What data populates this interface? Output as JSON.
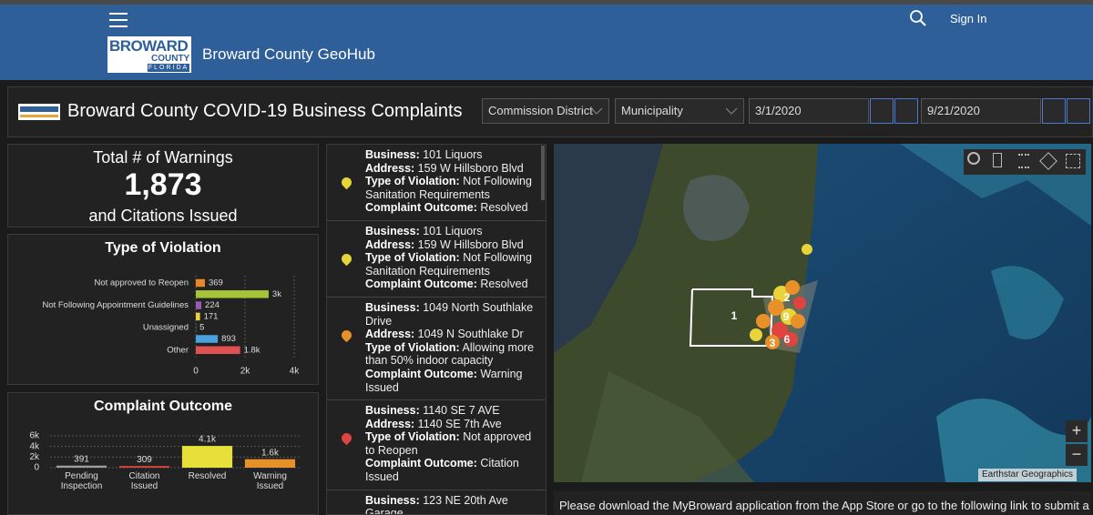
{
  "header": {
    "logo": {
      "name": "BROWARD",
      "county": "COUNTY",
      "state": "FLORIDA"
    },
    "site_title": "Broward County GeoHub",
    "sign_in": "Sign In"
  },
  "dashboard": {
    "title": "Broward County COVID-19 Business Complaints",
    "filters": [
      "Commission District",
      "Municipality"
    ],
    "start_date": "3/1/2020",
    "end_date": "9/21/2020"
  },
  "summary": {
    "top": "Total # of Warnings",
    "value": "1,873",
    "bottom": "and Citations Issued"
  },
  "chart_data": [
    {
      "type": "bar",
      "orientation": "horizontal",
      "title": "Type of Violation",
      "categories": [
        "Not approved to Reopen",
        null,
        "Not Following Appointment Guidelines",
        null,
        "Unassigned",
        null,
        "Other"
      ],
      "values": [
        369,
        2960,
        224,
        171,
        5,
        893,
        1800
      ],
      "value_labels": [
        "369",
        "3k",
        "224",
        "171",
        "5",
        "893",
        "1.8k"
      ],
      "colors": [
        "#e8862a",
        "#a6c43a",
        "#9b59b6",
        "#e8d33a",
        "#d0d0d0",
        "#4aa3df",
        "#e05252"
      ],
      "xlim": [
        0,
        4000
      ],
      "xticks": [
        0,
        {
          "value": 2000,
          "label": "2k"
        },
        {
          "value": 4000,
          "label": "4k"
        }
      ],
      "grid": true
    },
    {
      "type": "bar",
      "orientation": "vertical",
      "title": "Complaint Outcome",
      "categories": [
        "Pending Inspection",
        "Citation Issued",
        "Resolved",
        "Warning Issued"
      ],
      "values": [
        391,
        309,
        4100,
        1600
      ],
      "value_labels": [
        "391",
        "309",
        "4.1k",
        "1.6k"
      ],
      "colors": [
        "#9e9e9e",
        "#e0443e",
        "#e8e03a",
        "#e8902a"
      ],
      "ylim": [
        0,
        6000
      ],
      "yticks": [
        0,
        {
          "value": 2000,
          "label": "2k"
        },
        {
          "value": 4000,
          "label": "4k"
        },
        {
          "value": 6000,
          "label": "6k"
        }
      ],
      "grid": true
    }
  ],
  "complaints": {
    "labels": {
      "business": "Business:",
      "address": "Address:",
      "violation": "Type of Violation:",
      "outcome": "Complaint Outcome:"
    },
    "items": [
      {
        "business": "101 Liquors",
        "address": "159 W Hillsboro Blvd",
        "violation": "Not Following Sanitation Requirements",
        "outcome": "Resolved",
        "pin_color": "#e8d33a"
      },
      {
        "business": "101 Liquors",
        "address": "159 W Hillsboro Blvd",
        "violation": "Not Following Sanitation Requirements",
        "outcome": "Resolved",
        "pin_color": "#e8d33a"
      },
      {
        "business": "1049 North Southlake Drive",
        "address": "1049 N Southlake Dr",
        "violation": "Allowing more than 50% indoor capacity",
        "outcome": "Warning Issued",
        "pin_color": "#e8902a"
      },
      {
        "business": "1140 SE 7 AVE",
        "address": "1140 SE 7th Ave",
        "violation": "Not approved to Reopen",
        "outcome": "Citation Issued",
        "pin_color": "#e0443e"
      },
      {
        "business": "123 NE 20th Ave Garage"
      }
    ]
  },
  "map": {
    "cluster_labels": [
      "1",
      "2",
      "9",
      "3",
      "6"
    ],
    "attribution": "Earthstar Geographics"
  },
  "footer_note": "Please download the MyBroward application from the App Store or go to the following link to submit a"
}
